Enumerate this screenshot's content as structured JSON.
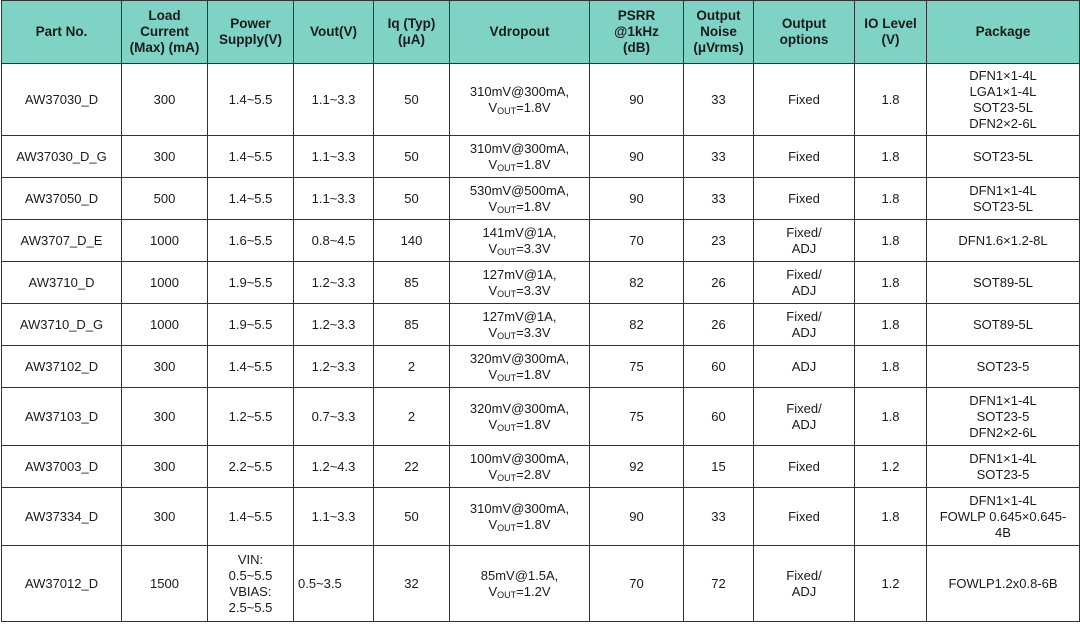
{
  "headers": [
    [
      "Part No."
    ],
    [
      "Load",
      "Current",
      "(Max) (mA)"
    ],
    [
      "Power",
      "Supply(V)"
    ],
    [
      "Vout(V)"
    ],
    [
      "Iq (Typ)",
      "(μA)"
    ],
    [
      "Vdropout"
    ],
    [
      "PSRR",
      "@1kHz",
      "(dB)"
    ],
    [
      "Output",
      "Noise",
      "(μVrms)"
    ],
    [
      "Output",
      "options"
    ],
    [
      "IO Level",
      "(V)"
    ],
    [
      "Package"
    ]
  ],
  "rows": [
    {
      "part": "AW37030_D",
      "current": "300",
      "supply": [
        "1.4~5.5"
      ],
      "vout": "1.1~3.3",
      "iq": "50",
      "vd_main": "310mV@300mA,",
      "vd_vout": "=1.8V",
      "psrr": "90",
      "noise": "33",
      "options": [
        "Fixed"
      ],
      "io": "1.8",
      "package": [
        "DFN1×1-4L",
        "LGA1×1-4L",
        "SOT23-5L",
        "DFN2×2-6L"
      ]
    },
    {
      "part": "AW37030_D_G",
      "current": "300",
      "supply": [
        "1.4~5.5"
      ],
      "vout": "1.1~3.3",
      "iq": "50",
      "vd_main": "310mV@300mA,",
      "vd_vout": "=1.8V",
      "psrr": "90",
      "noise": "33",
      "options": [
        "Fixed"
      ],
      "io": "1.8",
      "package": [
        "SOT23-5L"
      ]
    },
    {
      "part": "AW37050_D",
      "current": "500",
      "supply": [
        "1.4~5.5"
      ],
      "vout": "1.1~3.3",
      "iq": "50",
      "vd_main": "530mV@500mA,",
      "vd_vout": "=1.8V",
      "psrr": "90",
      "noise": "33",
      "options": [
        "Fixed"
      ],
      "io": "1.8",
      "package": [
        "DFN1×1-4L",
        "SOT23-5L"
      ]
    },
    {
      "part": "AW3707_D_E",
      "current": "1000",
      "supply": [
        "1.6~5.5"
      ],
      "vout": "0.8~4.5",
      "iq": "140",
      "vd_main": "141mV@1A,",
      "vd_vout": "=3.3V",
      "psrr": "70",
      "noise": "23",
      "options": [
        "Fixed/",
        "ADJ"
      ],
      "io": "1.8",
      "package": [
        "DFN1.6×1.2-8L"
      ]
    },
    {
      "part": "AW3710_D",
      "current": "1000",
      "supply": [
        "1.9~5.5"
      ],
      "vout": "1.2~3.3",
      "iq": "85",
      "vd_main": "127mV@1A,",
      "vd_vout": "=3.3V",
      "psrr": "82",
      "noise": "26",
      "options": [
        "Fixed/",
        "ADJ"
      ],
      "io": "1.8",
      "package": [
        "SOT89-5L"
      ]
    },
    {
      "part": "AW3710_D_G",
      "current": "1000",
      "supply": [
        "1.9~5.5"
      ],
      "vout": "1.2~3.3",
      "iq": "85",
      "vd_main": "127mV@1A,",
      "vd_vout": "=3.3V",
      "psrr": "82",
      "noise": "26",
      "options": [
        "Fixed/",
        "ADJ"
      ],
      "io": "1.8",
      "package": [
        "SOT89-5L"
      ]
    },
    {
      "part": "AW37102_D",
      "current": "300",
      "supply": [
        "1.4~5.5"
      ],
      "vout": "1.2~3.3",
      "iq": "2",
      "vd_main": "320mV@300mA,",
      "vd_vout": "=1.8V",
      "psrr": "75",
      "noise": "60",
      "options": [
        "ADJ"
      ],
      "io": "1.8",
      "package": [
        "SOT23-5"
      ]
    },
    {
      "part": "AW37103_D",
      "current": "300",
      "supply": [
        "1.2~5.5"
      ],
      "vout": "0.7~3.3",
      "iq": "2",
      "vd_main": "320mV@300mA,",
      "vd_vout": "=1.8V",
      "psrr": "75",
      "noise": "60",
      "options": [
        "Fixed/",
        "ADJ"
      ],
      "io": "1.8",
      "package": [
        "DFN1×1-4L",
        "SOT23-5",
        "DFN2×2-6L"
      ]
    },
    {
      "part": "AW37003_D",
      "current": "300",
      "supply": [
        "2.2~5.5"
      ],
      "vout": "1.2~4.3",
      "iq": "22",
      "vd_main": "100mV@300mA,",
      "vd_vout": "=2.8V",
      "psrr": "92",
      "noise": "15",
      "options": [
        "Fixed"
      ],
      "io": "1.2",
      "package": [
        "DFN1×1-4L",
        "SOT23-5"
      ]
    },
    {
      "part": "AW37334_D",
      "current": "300",
      "supply": [
        "1.4~5.5"
      ],
      "vout": "1.1~3.3",
      "iq": "50",
      "vd_main": "310mV@300mA,",
      "vd_vout": "=1.8V",
      "psrr": "90",
      "noise": "33",
      "options": [
        "Fixed"
      ],
      "io": "1.8",
      "package": [
        "DFN1×1-4L",
        "FOWLP 0.645×0.645-",
        "4B"
      ]
    },
    {
      "part": "AW37012_D",
      "current": "1500",
      "supply": [
        "VIN:",
        "0.5~5.5",
        "VBIAS:",
        "2.5~5.5"
      ],
      "vout": "0.5~3.5",
      "iq": "32",
      "vd_main": "85mV@1.5A,",
      "vd_vout": "=1.2V",
      "psrr": "70",
      "noise": "72",
      "options": [
        "Fixed/",
        "ADJ"
      ],
      "io": "1.2",
      "package": [
        "FOWLP1.2x0.8-6B"
      ]
    }
  ],
  "vout_label": "V",
  "vout_sub": "OUT"
}
